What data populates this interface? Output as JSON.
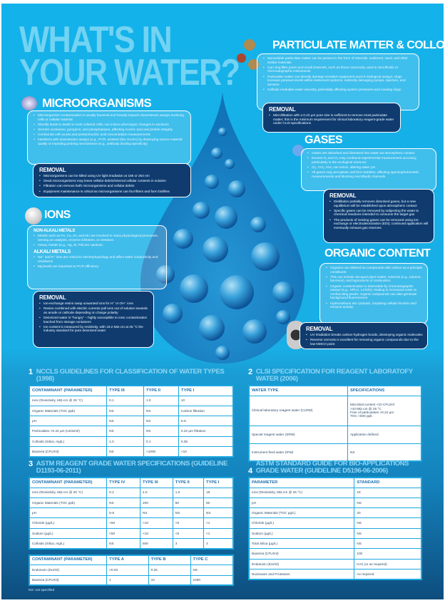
{
  "title": {
    "line1": "WHAT'S IN",
    "line2": "YOUR WATER?"
  },
  "colors": {
    "background": "#14b2ea",
    "removal_box": "#0f3b6f",
    "table_border": "#1ca7e0",
    "table_title": "#8fd6f4",
    "title": "#72d3f3"
  },
  "microorganisms": {
    "title": "MICROORGANISMS",
    "icon": "bacteria-icon",
    "bullets": [
      "Microorganism contamination is usually bacterial and heavily impacts downstream assays involving cells or cellular material",
      "Directly leads to death in most cultured cells; can induce phenotypic changes in survivors",
      "Secrete nucleases, pyrogens, and phosphatases, affecting nucleic acid and protein integrity",
      "Confounds cell counts and protein/nucleic acid concentration measurements",
      "Interferes with downstream assays (e.g., PCR, western blot, ELISA) by destroying source material quality or impeding probing mechanisms (e.g., antibody binding specificity)"
    ],
    "removal_title": "REMOVAL",
    "removal": [
      "Microorganisms can be killed using UV light irradiation at 185 or 254 nm",
      "Dead microorganisms may leave cellular debris/internal cellular contents in solution",
      "Filtration can remove both microorganisms and cellular debris",
      "Equipment maintenance is critical as microorganisms can foul filters and form biofilms"
    ]
  },
  "particulate": {
    "title": "PARTICULATE MATTER & COLLOIDS",
    "icon": "particles-icon",
    "bullets": [
      "Nonsoluble particulate matter can be present in the form of minerals, sediment, sand, and other similar materials",
      "Can clog filter pores and small channels, such as those commonly used in microfluidic or chromatographic instruments",
      "Particulate matter can directly damage sensitive equipment used in biological assays; clogs increase pressure levels within instrument systems, indirectly damaging pumps, injectors, and sensors",
      "Colloids modulate water viscosity, potentially affecting system pressures and causing clogs"
    ],
    "removal_title": "REMOVAL",
    "removal": [
      "Microfiltration with a 0.22 µm pore size is sufficient to remove most particulate matter; this is the minimum requirement for clinical laboratory reagent-grade water under CLSI specifications"
    ]
  },
  "gases": {
    "title": "GASES",
    "icon": "gas-molecule-icon",
    "bullets": [
      "Gases are absorbed and dissolved into water via atmospheric contact",
      "Excess N₂ and O₂ may confound experimental measurement accuracy, particularly in the ecological sciences",
      "Cl₂, CO₂, NH₃ can ionize, altering water pH",
      "All gases may precipitate and form bubbles, affecting spectrophotometric measurements and blocking microfluidic channels"
    ],
    "removal_title": "REMOVAL",
    "removal": [
      "Distillation partially removes dissolved gases, but a new equilibrium will be established upon atmospheric contact",
      "Specific gases can be removed by subjecting the water to chemical reactions intended to consume the target gas",
      "The products of ionizing gases can be removed using ion-exchange or electrodeionization (EDI); continued application will eventually exhaust gas reserves"
    ]
  },
  "ions": {
    "title": "IONS",
    "icon": "ion-sphere-icon",
    "non_alkali_title": "NON-ALKALI METALS",
    "non_alkali": [
      "Metals such as Fe, Cu, Zn, and Mn are involved in many physiological processes, serving as catalysts, enzyme inhibitors, or chelators",
      "Heavy metals (e.g., Hg, Zr, Pd) are cytotoxic"
    ],
    "alkali_title": "ALKALI METALS",
    "alkali": [
      "Na⁺ and K⁺ ions are critical to electrophysiology and affect water conductivity and resistance",
      "Mg levels are important to PCR efficiency"
    ],
    "removal_title": "REMOVAL",
    "removal": [
      "Ion-exchange resins swap unwanted ions for H⁺ or OH⁻ ions",
      "Resins combined with electric currents pull ions out of solution towards an anode or cathode depending on charge polarity",
      "Deionized water is “hungry” – highly susceptible to ionic contamination leached from storage containers",
      "Ion content is measured by resistivity, with 18.2 MΩ·cm at 25 °C the industry standard for pure deionized water"
    ]
  },
  "organic": {
    "title": "ORGANIC CONTENT",
    "icon": "hydrocarbon-molecule-icon",
    "bullets": [
      "Organics are defined as compounds with carbon as a principle constituent",
      "This can include decayed plant matter, solvents (e.g., toluene, benzene), and byproducts of combustion",
      "Organic contamination is detectable by chromatographic assays (e.g., HPLC, LC/MS), leading to increased noise or confounding peaks; organic compounds can also generate background fluorescence",
      "Hydrocarbons are cytotoxic, impairing cellular function and enzyme activity"
    ],
    "removal_title": "REMOVAL",
    "removal": [
      "UV irradiation breaks carbon-hydrogen bonds, destroying organic molecules",
      "Reverse osmosis is excellent for removing organic compounds due to the low NMCO point"
    ]
  },
  "tables": {
    "t1": {
      "num": "1",
      "title": "NCCLS GUIDELINES FOR CLASSIFICATION OF WATER TYPES (1998)",
      "headers": [
        "CONTAMINANT (PARAMETER)",
        "TYPE III",
        "TYPE II",
        "TYPE I"
      ],
      "rows": [
        [
          "Ions (Resistivity, MΩ·cm @ 25 °C)",
          "0.1",
          "1.0",
          "10"
        ],
        [
          "Organic Materials (TOC ppb)",
          "NS",
          "NS",
          "Carbon filtration"
        ],
        [
          "pH",
          "NS",
          "NS",
          "5-8"
        ],
        [
          "Particulates >0.22 µm (Units/ml)",
          "NS",
          "NS",
          "0.22 µm filtration"
        ],
        [
          "Colloids (Silica, mg/L)",
          "1.0",
          "0.1",
          "0.05"
        ],
        [
          "Bacteria (CFU/ml)",
          "NS",
          "<1000",
          "<10"
        ]
      ]
    },
    "t2": {
      "num": "2",
      "title": "CLSI SPECIFICATION FOR REAGENT LABORATOFY WATER (2006)",
      "headers": [
        "WATER TYPE",
        "SPECIFICATIONS"
      ],
      "rows": [
        [
          "Clinical laboratory reagent water (CLRW)",
          "Microbial content <10 CFU/ml\n>10 MΩ·cm @ 25 °C\nFree of particulates >0.22 µm\nTOC <500 ppb"
        ],
        [
          "Special reagent water (SRW)",
          "Application defined"
        ],
        [
          "Instrument feed water (IFW)",
          "NS"
        ]
      ]
    },
    "t3": {
      "num": "3",
      "title": "ASTM REAGENT GRADE WATER SPECIFICATIONS (GUIDELINE D1193-06-2011)",
      "headers": [
        "CONTAMINANT (PARAMETER)",
        "TYPE IV",
        "TYPE III",
        "TYPE II",
        "TYPE I"
      ],
      "rows": [
        [
          "Ions (Resistivity, MΩ·cm @ 25 °C)",
          "0.2",
          "4.0",
          "1.0",
          "18"
        ],
        [
          "Organic Materials (TOC ppb)",
          "NS",
          "200",
          "50",
          "50"
        ],
        [
          "pH",
          "5-8",
          "NS",
          "NS",
          "NS"
        ],
        [
          "Chloride (µg/L)",
          "<50",
          "<10",
          "<5",
          "<1"
        ],
        [
          "Sodium (µg/L)",
          "<50",
          "<10",
          "<5",
          "<1"
        ],
        [
          "Colloids (Silica, mg/L)",
          "NS",
          "500",
          "3",
          "3"
        ]
      ]
    },
    "t3b": {
      "headers": [
        "CONTAMINANT (PARAMETER)",
        "TYPE A",
        "TYPE B",
        "TYPE C"
      ],
      "rows": [
        [
          "Endotoxin (EU/ml)",
          "<0.03",
          "0.25",
          "NS"
        ],
        [
          "Bacteria (CFU/ml)",
          "1",
          "10",
          "1000"
        ]
      ]
    },
    "footnote": "NS: not specified",
    "t4": {
      "num": "4",
      "title": "ASTM STANDARD GUIDE FOR BIO-APPLICATIONS GRADE WATER (GUIDELINE D5196-06-2006)",
      "headers": [
        "PARAMETER",
        "STANDARD"
      ],
      "rows": [
        [
          "Ions (Resistivity, MΩ·cm @ 25 °C)",
          "18"
        ],
        [
          "pH",
          "NS"
        ],
        [
          "Organic Materials (TOC µg/L)",
          "20"
        ],
        [
          "Chloride (µg/L)",
          "NS"
        ],
        [
          "Sodium (µg/L)",
          "NS"
        ],
        [
          "Total Silica (µg/L)",
          "NS"
        ],
        [
          "Bacteria (CFU/ml)",
          "100"
        ],
        [
          "Endotoxin (EU/ml)",
          "0.01 (or as required)"
        ],
        [
          "Nucleases and Proteases",
          "As required"
        ]
      ]
    }
  }
}
